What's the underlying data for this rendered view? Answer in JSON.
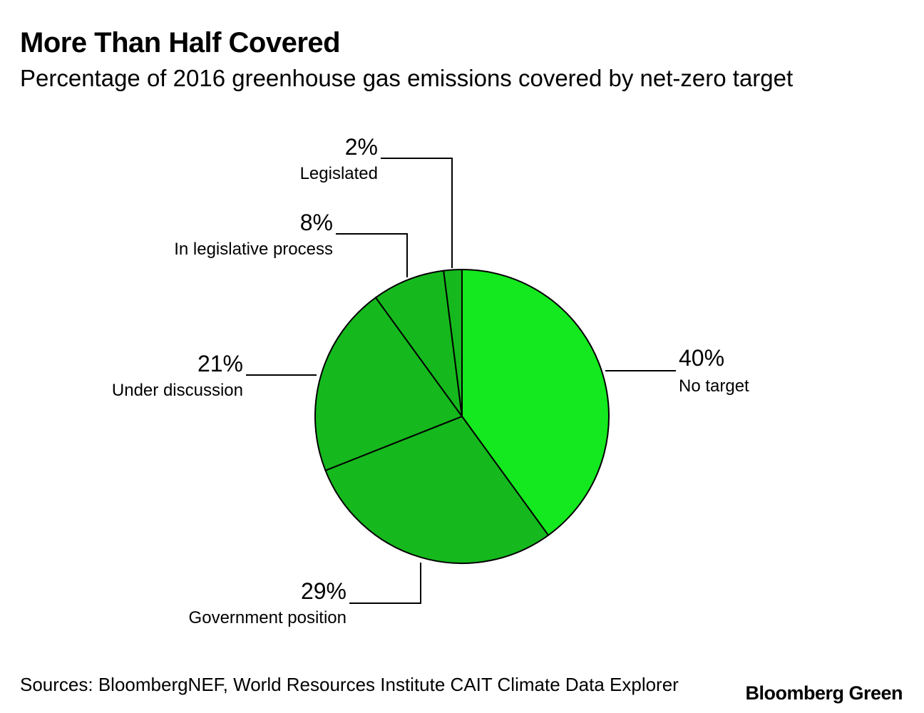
{
  "header": {
    "title": "More Than Half Covered",
    "subtitle": "Percentage of 2016 greenhouse gas emissions covered by net-zero target"
  },
  "chart_data": {
    "type": "pie",
    "title": "More Than Half Covered",
    "subtitle": "Percentage of 2016 greenhouse gas emissions covered by net-zero target",
    "start_angle": "12 o'clock",
    "direction": "clockwise",
    "slices": [
      {
        "label": "No target",
        "value": 40,
        "value_label": "40%",
        "color": "#14e81e"
      },
      {
        "label": "Government position",
        "value": 29,
        "value_label": "29%",
        "color": "#15b91d"
      },
      {
        "label": "Under discussion",
        "value": 21,
        "value_label": "21%",
        "color": "#15b91d"
      },
      {
        "label": "In legislative process",
        "value": 8,
        "value_label": "8%",
        "color": "#15b91d"
      },
      {
        "label": "Legislated",
        "value": 2,
        "value_label": "2%",
        "color": "#15b91d"
      }
    ],
    "stroke_color": "#000000"
  },
  "footer": {
    "source": "Sources: BloombergNEF, World Resources Institute CAIT Climate Data Explorer",
    "brand": "Bloomberg Green"
  }
}
